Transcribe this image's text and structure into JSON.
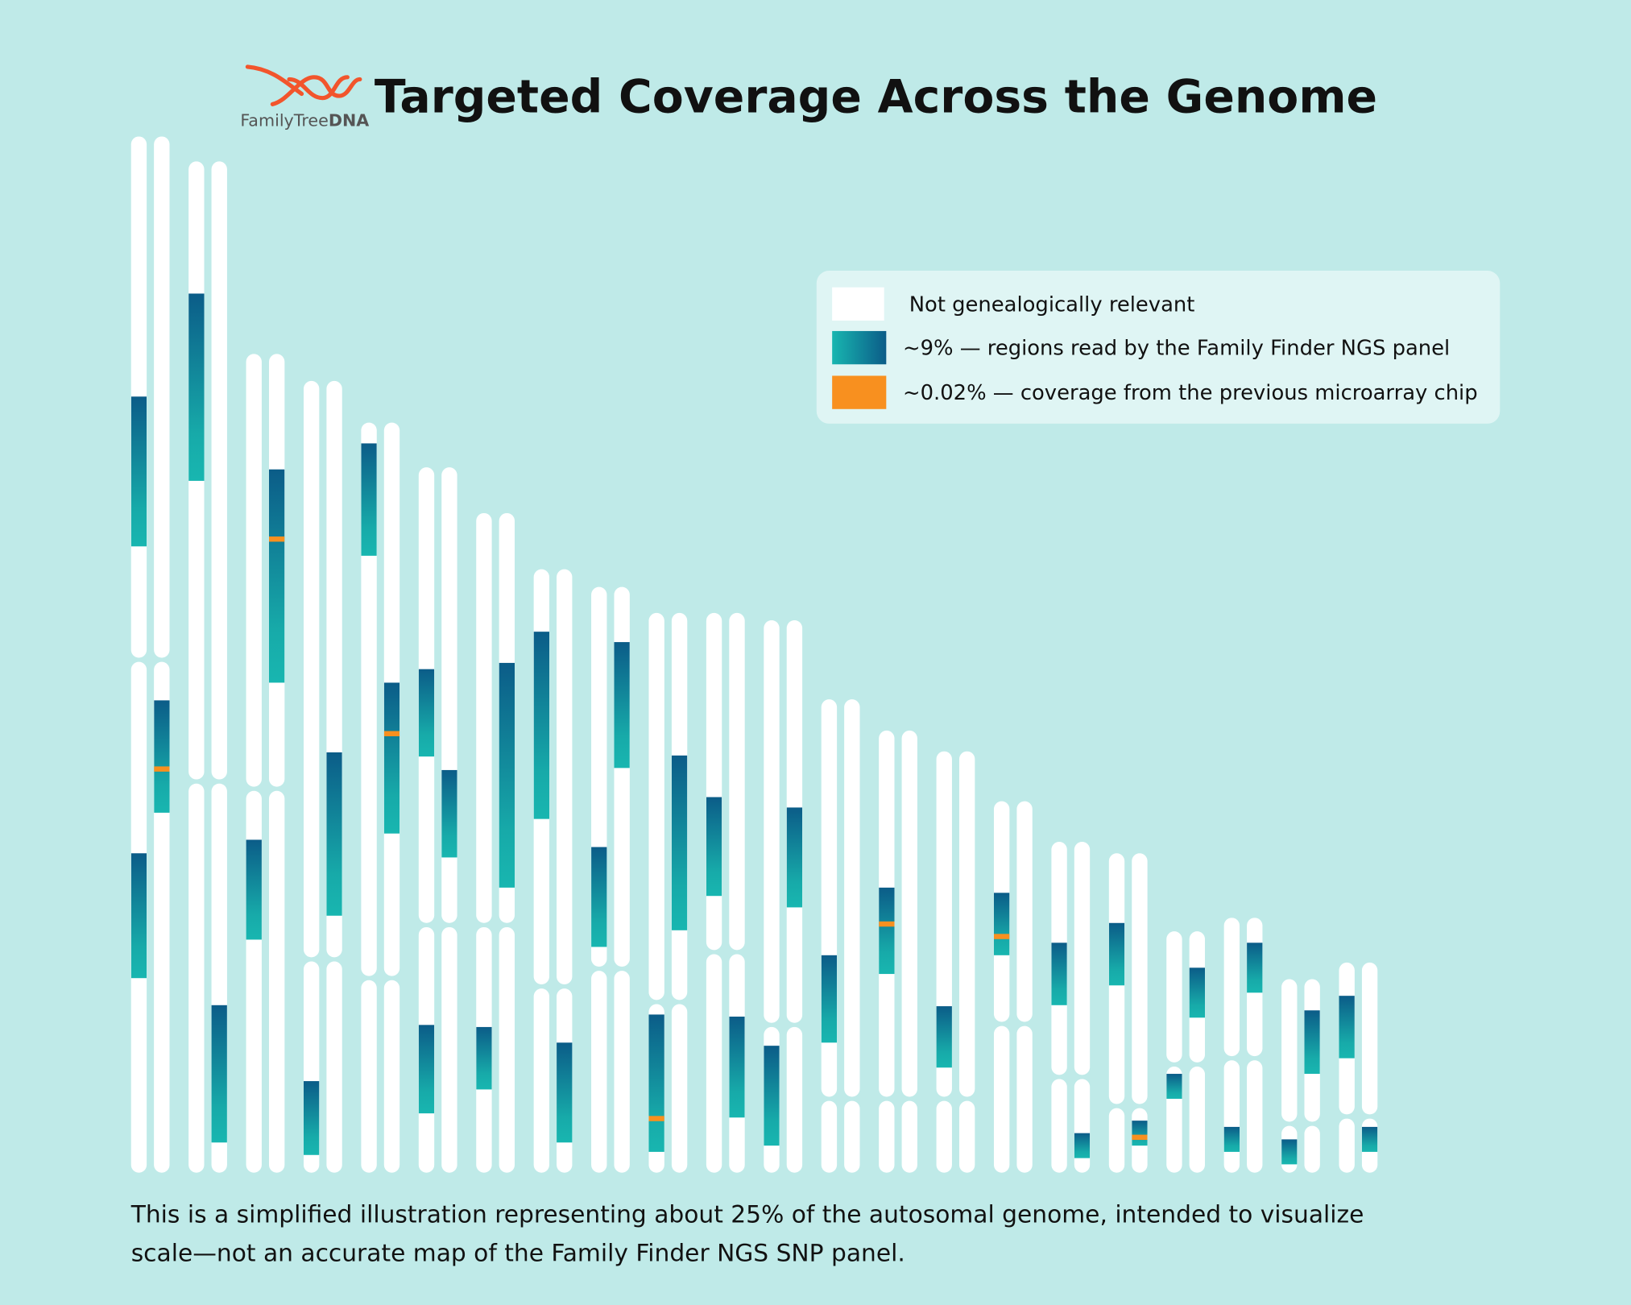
{
  "header": {
    "logo": {
      "text": "FamilyTree",
      "bold": "DNA"
    },
    "title": "Targeted Coverage Across the Genome"
  },
  "legend": {
    "items": [
      {
        "label": "Not genealogically relevant"
      },
      {
        "label": "~9% — regions read by the Family Finder NGS panel"
      },
      {
        "label": "~0.02% — coverage from the previous microarray chip"
      }
    ]
  },
  "footnote": {
    "lines": [
      "This is a simplified illustration representing about 25% of the autosomal genome, intended to visualize",
      "scale—not an accurate map of the Family Finder NGS SNP panel."
    ]
  }
}
